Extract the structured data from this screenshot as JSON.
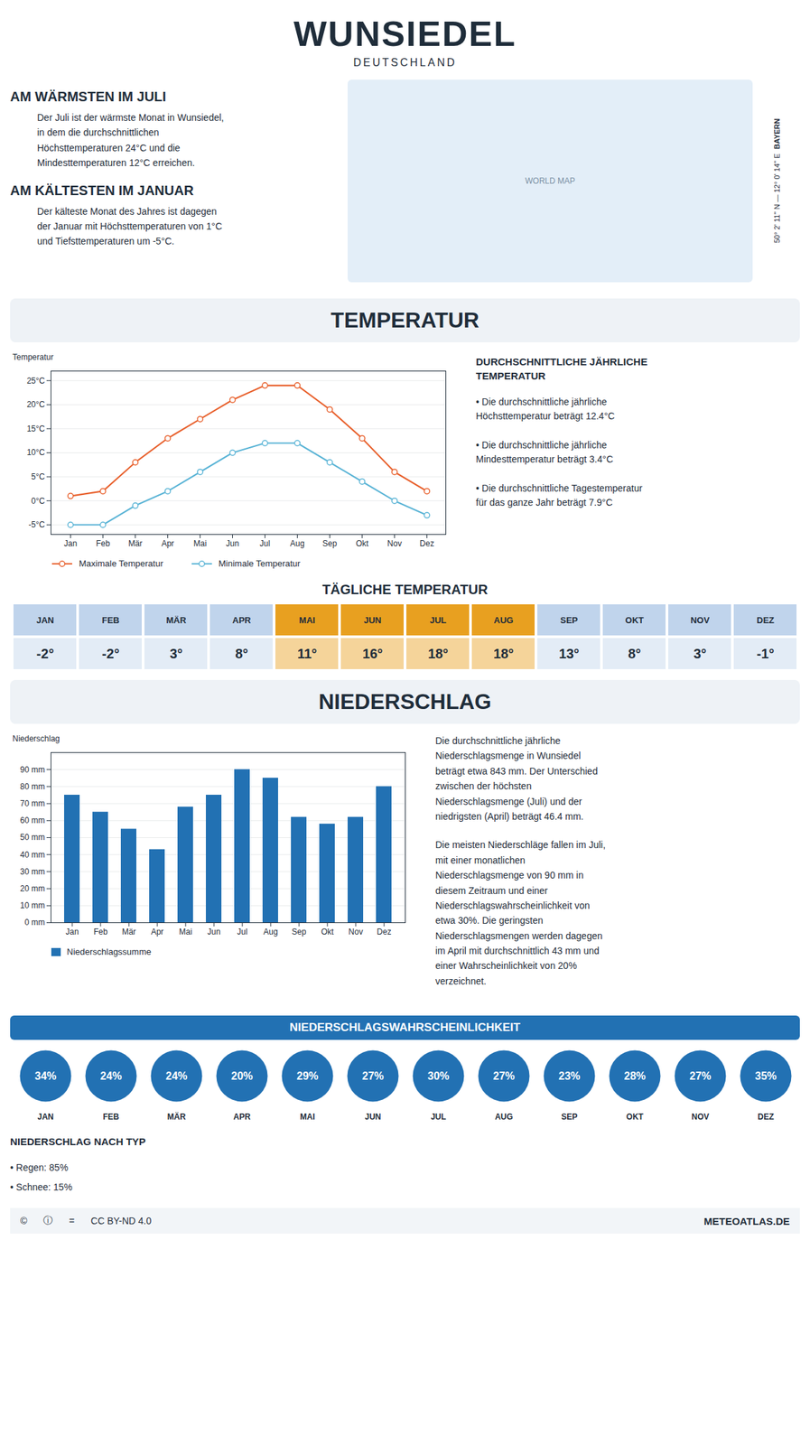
{
  "title": "WUNSIEDEL",
  "subtitle": "DEUTSCHLAND",
  "annotations": [
    "AM WÄRMSTEN IM JULI",
    "Der Juli ist der wärmste Monat in Wunsiedel,\nin dem die durchschnittlichen\nHöchsttemperaturen 24°C und die\nMindesttemperaturen 12°C erreichen.",
    "AM KÄLTESTEN IM JANUAR",
    "Der kälteste Monat des Jahres ist dagegen\nder Januar mit Höchsttemperaturen von 1°C\nund Tiefsttemperaturen um -5°C.",
    "WORLD MAP",
    "50° 2' 11'' N — 12° 0' 14'' E",
    "BAYERN",
    "©",
    "ⓘ",
    "=",
    "CC BY-ND 4.0",
    "METEOATLAS.DE"
  ],
  "chart_data": [
    {
      "type": "line",
      "title": "TEMPERATUR",
      "categories": [
        "Jan",
        "Feb",
        "Mär",
        "Apr",
        "Mai",
        "Jun",
        "Jul",
        "Aug",
        "Sep",
        "Okt",
        "Nov",
        "Dez"
      ],
      "series": [
        {
          "name": "Maximale Temperatur",
          "color": "#e8602c",
          "marker": "o",
          "values": [
            1,
            2,
            8,
            13,
            17,
            21,
            24,
            24,
            19,
            13,
            6,
            2
          ]
        },
        {
          "name": "Minimale Temperatur",
          "color": "#5ab4d6",
          "marker": "o",
          "values": [
            -5,
            -5,
            -1,
            2,
            6,
            10,
            12,
            12,
            8,
            4,
            0,
            -3
          ]
        }
      ],
      "ylabel": "Temperatur",
      "ylim": [
        -7,
        27
      ],
      "yticks": [
        {
          "value": -5,
          "label": "-5°C"
        },
        {
          "value": 0,
          "label": "0°C"
        },
        {
          "value": 5,
          "label": "5°C"
        },
        {
          "value": 10,
          "label": "10°C"
        },
        {
          "value": 15,
          "label": "15°C"
        },
        {
          "value": 20,
          "label": "20°C"
        },
        {
          "value": 25,
          "label": "25°C"
        }
      ],
      "grid": true,
      "legend": "bottom",
      "annotations": [
        "DURCHSCHNITTLICHE JÄHRLICHE\nTEMPERATUR",
        "• Die durchschnittliche jährliche\nHöchsttemperatur beträgt 12.4°C",
        "• Die durchschnittliche jährliche\nMindesttemperatur beträgt 3.4°C",
        "• Die durchschnittliche Tagestemperatur\nfür das ganze Jahr beträgt 7.9°C"
      ]
    },
    {
      "type": "table",
      "title": "TÄGLICHE TEMPERATUR",
      "categories": [
        "JAN",
        "FEB",
        "MÄR",
        "APR",
        "MAI",
        "JUN",
        "JUL",
        "AUG",
        "SEP",
        "OKT",
        "NOV",
        "DEZ"
      ],
      "values": [
        -2,
        -2,
        3,
        8,
        11,
        16,
        18,
        18,
        13,
        8,
        3,
        -1
      ],
      "value_labels": [
        "-2°",
        "-2°",
        "3°",
        "8°",
        "11°",
        "16°",
        "18°",
        "18°",
        "13°",
        "8°",
        "3°",
        "-1°"
      ],
      "data_labels": true,
      "colors": [
        "#c0d4ec",
        "#c0d4ec",
        "#c0d4ec",
        "#c0d4ec",
        "#e8a020",
        "#e8a020",
        "#e8a020",
        "#e8a020",
        "#c0d4ec",
        "#c0d4ec",
        "#c0d4ec",
        "#c0d4ec"
      ]
    },
    {
      "type": "bar",
      "title": "NIEDERSCHLAG",
      "categories": [
        "Jan",
        "Feb",
        "Mär",
        "Apr",
        "Mai",
        "Jun",
        "Jul",
        "Aug",
        "Sep",
        "Okt",
        "Nov",
        "Dez"
      ],
      "series": [
        {
          "name": "Niederschlagssumme",
          "color": "#2271b3",
          "values": [
            75,
            65,
            55,
            43,
            68,
            75,
            90,
            85,
            62,
            58,
            62,
            80
          ]
        }
      ],
      "ylabel": "Niederschlag",
      "ylim": [
        0,
        100
      ],
      "yticks": [
        {
          "value": 0,
          "label": "0 mm"
        },
        {
          "value": 10,
          "label": "10 mm"
        },
        {
          "value": 20,
          "label": "20 mm"
        },
        {
          "value": 30,
          "label": "30 mm"
        },
        {
          "value": 40,
          "label": "40 mm"
        },
        {
          "value": 50,
          "label": "50 mm"
        },
        {
          "value": 60,
          "label": "60 mm"
        },
        {
          "value": 70,
          "label": "70 mm"
        },
        {
          "value": 80,
          "label": "80 mm"
        },
        {
          "value": 90,
          "label": "90 mm"
        }
      ],
      "grid": true,
      "legend": "bottom",
      "annotations": [
        "Die durchschnittliche jährliche\nNiederschlagsmenge in Wunsiedel\nbeträgt etwa 843 mm. Der Unterschied\nzwischen der höchsten\nNiederschlagsmenge (Juli) und der\nniedrigsten (April) beträgt 46.4 mm.",
        "Die meisten Niederschläge fallen im Juli,\nmit einer monatlichen\nNiederschlagsmenge von 90 mm in\ndiesem Zeitraum und einer\nNiederschlagswahrscheinlichkeit von\netwa 30%. Die geringsten\nNiederschlagsmengen werden dagegen\nim April mit durchschnittlich 43 mm und\neiner Wahrscheinlichkeit von 20%\nverzeichnet."
      ]
    },
    {
      "type": "dot",
      "title": "NIEDERSCHLAGSWAHRSCHEINLICHKEIT",
      "categories": [
        "JAN",
        "FEB",
        "MÄR",
        "APR",
        "MAI",
        "JUN",
        "JUL",
        "AUG",
        "SEP",
        "OKT",
        "NOV",
        "DEZ"
      ],
      "values": [
        34,
        24,
        24,
        20,
        29,
        27,
        30,
        27,
        23,
        28,
        27,
        35
      ],
      "value_labels": [
        "34%",
        "24%",
        "24%",
        "20%",
        "29%",
        "27%",
        "30%",
        "27%",
        "23%",
        "28%",
        "27%",
        "35%"
      ],
      "data_labels": true,
      "tick_labels": "x",
      "color": "#2271b3",
      "annotations": [
        "NIEDERSCHLAG NACH TYP",
        "• Regen: 85%",
        "• Schnee: 15%"
      ]
    }
  ]
}
